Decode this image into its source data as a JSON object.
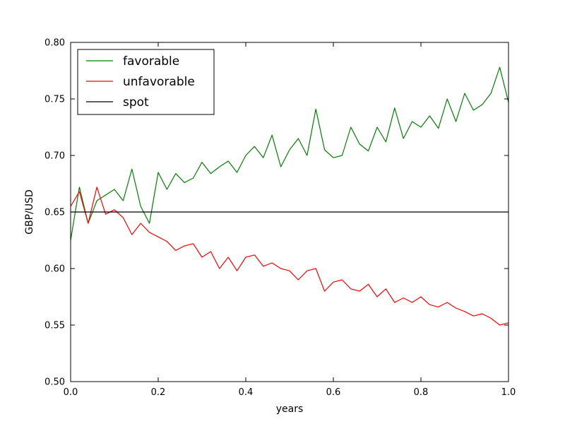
{
  "chart_data": {
    "type": "line",
    "title": "",
    "xlabel": "years",
    "ylabel": "GBP/USD",
    "xlim": [
      0.0,
      1.0
    ],
    "ylim": [
      0.5,
      0.8
    ],
    "xticks": [
      "0.0",
      "0.2",
      "0.4",
      "0.6",
      "0.8",
      "1.0"
    ],
    "yticks": [
      "0.50",
      "0.55",
      "0.60",
      "0.65",
      "0.70",
      "0.75",
      "0.80"
    ],
    "grid": false,
    "legend_position": "top-left",
    "series": [
      {
        "name": "favorable",
        "color": "#008000",
        "x": [
          0.0,
          0.02,
          0.04,
          0.06,
          0.08,
          0.1,
          0.12,
          0.14,
          0.16,
          0.18,
          0.2,
          0.22,
          0.24,
          0.26,
          0.28,
          0.3,
          0.32,
          0.34,
          0.36,
          0.38,
          0.4,
          0.42,
          0.44,
          0.46,
          0.48,
          0.5,
          0.52,
          0.54,
          0.56,
          0.58,
          0.6,
          0.62,
          0.64,
          0.66,
          0.68,
          0.7,
          0.72,
          0.74,
          0.76,
          0.78,
          0.8,
          0.82,
          0.84,
          0.86,
          0.88,
          0.9,
          0.92,
          0.94,
          0.96,
          0.98,
          1.0
        ],
        "y": [
          0.625,
          0.672,
          0.64,
          0.66,
          0.665,
          0.67,
          0.66,
          0.688,
          0.655,
          0.64,
          0.685,
          0.67,
          0.684,
          0.676,
          0.68,
          0.694,
          0.684,
          0.69,
          0.695,
          0.685,
          0.7,
          0.708,
          0.698,
          0.718,
          0.69,
          0.705,
          0.715,
          0.7,
          0.741,
          0.705,
          0.698,
          0.7,
          0.725,
          0.71,
          0.704,
          0.725,
          0.712,
          0.742,
          0.715,
          0.73,
          0.725,
          0.735,
          0.724,
          0.75,
          0.73,
          0.755,
          0.74,
          0.745,
          0.755,
          0.778,
          0.747
        ]
      },
      {
        "name": "unfavorable",
        "color": "#ff0000",
        "x": [
          0.0,
          0.02,
          0.04,
          0.06,
          0.08,
          0.1,
          0.12,
          0.14,
          0.16,
          0.18,
          0.2,
          0.22,
          0.24,
          0.26,
          0.28,
          0.3,
          0.32,
          0.34,
          0.36,
          0.38,
          0.4,
          0.42,
          0.44,
          0.46,
          0.48,
          0.5,
          0.52,
          0.54,
          0.56,
          0.58,
          0.6,
          0.62,
          0.64,
          0.66,
          0.68,
          0.7,
          0.72,
          0.74,
          0.76,
          0.78,
          0.8,
          0.82,
          0.84,
          0.86,
          0.88,
          0.9,
          0.92,
          0.94,
          0.96,
          0.98,
          1.0
        ],
        "y": [
          0.655,
          0.668,
          0.64,
          0.672,
          0.648,
          0.652,
          0.645,
          0.63,
          0.64,
          0.632,
          0.628,
          0.624,
          0.616,
          0.62,
          0.622,
          0.61,
          0.615,
          0.6,
          0.61,
          0.598,
          0.61,
          0.612,
          0.602,
          0.605,
          0.6,
          0.598,
          0.59,
          0.598,
          0.6,
          0.58,
          0.588,
          0.59,
          0.582,
          0.58,
          0.586,
          0.575,
          0.582,
          0.57,
          0.574,
          0.57,
          0.575,
          0.568,
          0.566,
          0.57,
          0.565,
          0.562,
          0.558,
          0.56,
          0.556,
          0.55,
          0.552
        ]
      },
      {
        "name": "spot",
        "color": "#000000",
        "x": [
          0.0,
          1.0
        ],
        "y": [
          0.65,
          0.65
        ]
      }
    ]
  }
}
